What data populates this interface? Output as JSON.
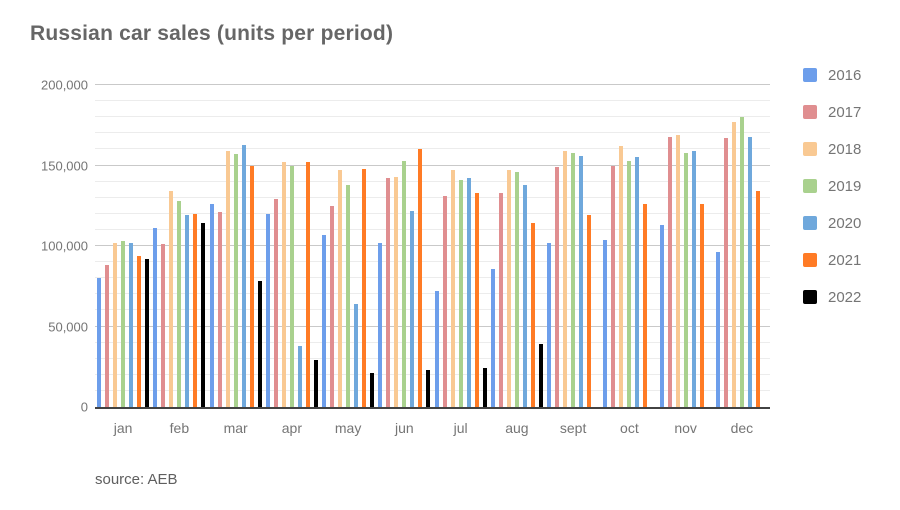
{
  "title": "Russian car sales (units per period)",
  "source_note": "source: AEB",
  "axis_color": "#424242",
  "grid_minor_color": "#ececec",
  "grid_major_color": "#c9c9c9",
  "text_color": "#757575",
  "chart_data": {
    "type": "bar",
    "title": "Russian car sales (units per period)",
    "xlabel": "",
    "ylabel": "",
    "ylim": [
      0,
      200000
    ],
    "yticks": [
      0,
      50000,
      100000,
      150000,
      200000
    ],
    "ytick_labels": [
      "0",
      "50,000",
      "100,000",
      "150,000",
      "200,000"
    ],
    "minor_grid_step": 10000,
    "grid": true,
    "legend_position": "right",
    "categories": [
      "jan",
      "feb",
      "mar",
      "apr",
      "may",
      "jun",
      "jul",
      "aug",
      "sept",
      "oct",
      "nov",
      "dec"
    ],
    "series": [
      {
        "name": "2016",
        "color": "#6d9eeb",
        "values": [
          80000,
          111000,
          126000,
          120000,
          107000,
          102000,
          72000,
          86000,
          102000,
          104000,
          113000,
          96000
        ]
      },
      {
        "name": "2017",
        "color": "#e08e90",
        "values": [
          88000,
          101000,
          121000,
          129000,
          125000,
          142000,
          131000,
          133000,
          149000,
          150000,
          168000,
          167000
        ]
      },
      {
        "name": "2018",
        "color": "#f9c993",
        "values": [
          102000,
          134000,
          159000,
          152000,
          147000,
          143000,
          147000,
          147000,
          159000,
          162000,
          169000,
          177000
        ]
      },
      {
        "name": "2019",
        "color": "#a9d18e",
        "values": [
          103000,
          128000,
          157000,
          150000,
          138000,
          153000,
          141000,
          146000,
          158000,
          153000,
          158000,
          180000
        ]
      },
      {
        "name": "2020",
        "color": "#6fa8dc",
        "values": [
          102000,
          119000,
          163000,
          38000,
          64000,
          122000,
          142000,
          138000,
          156000,
          155000,
          159000,
          168000
        ]
      },
      {
        "name": "2021",
        "color": "#ff7b25",
        "values": [
          94000,
          120000,
          150000,
          152000,
          148000,
          160000,
          133000,
          114000,
          119000,
          126000,
          126000,
          134000
        ]
      },
      {
        "name": "2022",
        "color": "#000000",
        "values": [
          92000,
          114000,
          78000,
          29000,
          21000,
          23000,
          24000,
          39000,
          null,
          null,
          null,
          null
        ]
      }
    ]
  }
}
